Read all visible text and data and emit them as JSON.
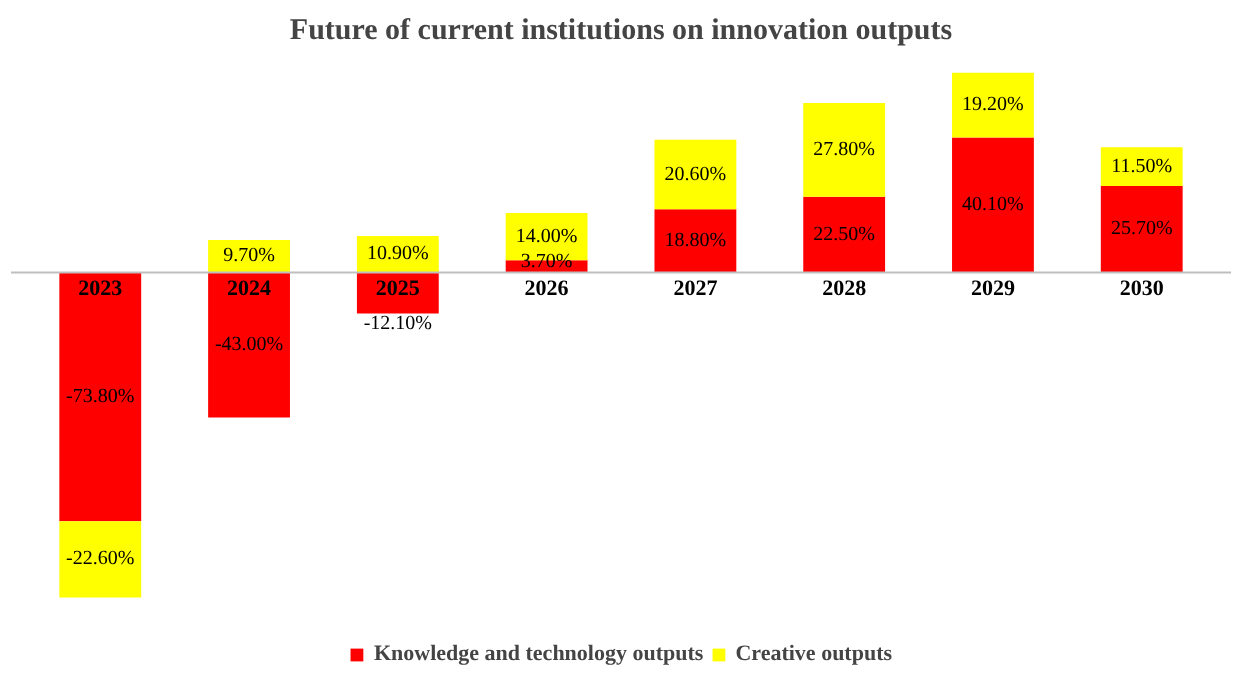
{
  "chart_data": {
    "type": "bar",
    "title": "Future of current institutions on innovation outputs",
    "stacked": true,
    "categories": [
      "2023",
      "2024",
      "2025",
      "2026",
      "2027",
      "2028",
      "2029",
      "2030"
    ],
    "series": [
      {
        "name": "Knowledge and technology outputs",
        "color": "#ff0000",
        "values": [
          -73.8,
          -43.0,
          -12.1,
          3.7,
          18.8,
          22.5,
          40.1,
          25.7
        ],
        "value_labels": [
          "-73.80%",
          "-43.00%",
          "-12.10%",
          "3.70%",
          "18.80%",
          "22.50%",
          "40.10%",
          "25.70%"
        ]
      },
      {
        "name": "Creative outputs",
        "color": "#ffff00",
        "values": [
          -22.6,
          9.7,
          10.9,
          14.0,
          20.6,
          27.8,
          19.2,
          11.5
        ],
        "value_labels": [
          "-22.60%",
          "9.70%",
          "10.90%",
          "14.00%",
          "20.60%",
          "27.80%",
          "19.20%",
          "11.50%"
        ]
      }
    ],
    "legend": "bottom"
  }
}
